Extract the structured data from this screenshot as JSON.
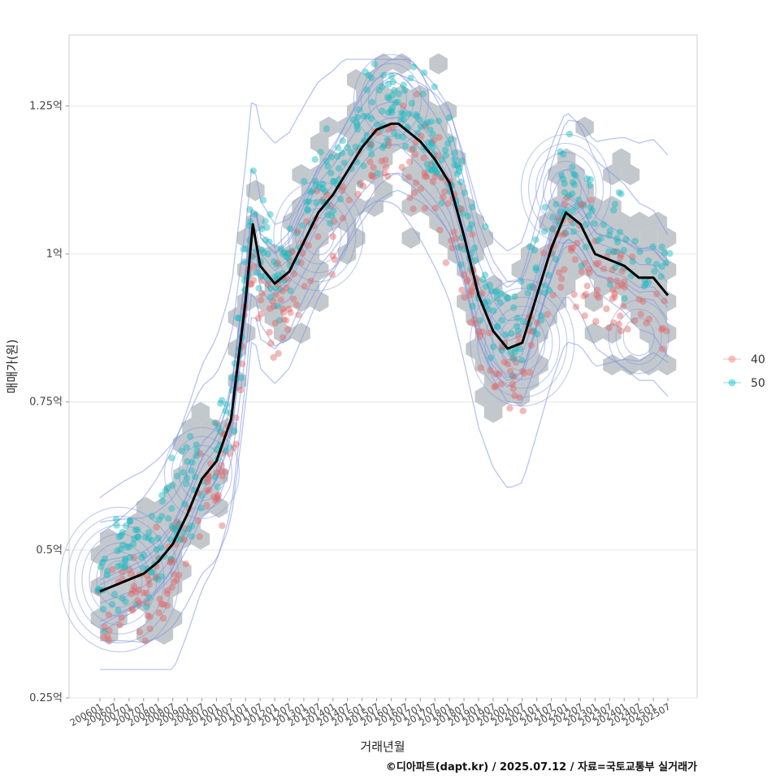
{
  "chart_data": {
    "type": "scatter",
    "xlabel": "거래년월",
    "ylabel": "매매가(원)",
    "caption": "©디아파트(dapt.kr) / 2025.07.12 / 자료=국토교통부 실거래가",
    "y_ticks": [
      {
        "value": 0.25,
        "label": "0.25억"
      },
      {
        "value": 0.5,
        "label": "0.5억"
      },
      {
        "value": 0.75,
        "label": "0.75억"
      },
      {
        "value": 1.0,
        "label": "1억"
      },
      {
        "value": 1.25,
        "label": "1.25억"
      }
    ],
    "ylim": [
      0.25,
      1.37
    ],
    "x_tick_labels": [
      "200601",
      "200607",
      "200701",
      "200707",
      "200801",
      "200807",
      "200901",
      "200907",
      "201001",
      "201007",
      "201101",
      "201107",
      "201201",
      "201207",
      "201301",
      "201307",
      "201401",
      "201407",
      "201501",
      "201507",
      "201601",
      "201607",
      "201701",
      "201707",
      "201801",
      "201807",
      "201901",
      "201907",
      "202001",
      "202007",
      "202101",
      "202107",
      "202201",
      "202207",
      "202301",
      "202307",
      "202401",
      "202407",
      "202501",
      "202507"
    ],
    "legend": {
      "position": "right",
      "entries": [
        {
          "name": "40",
          "color": "#F8766D"
        },
        {
          "name": "50",
          "color": "#00BFC4"
        }
      ]
    },
    "colors": {
      "hex": "#b8bec4",
      "contour": "#7b93e0",
      "trend": "#000000",
      "series_40": "#e06666",
      "series_50": "#13b9be"
    },
    "trend_line": {
      "x": [
        "200601",
        "200607",
        "200701",
        "200707",
        "200801",
        "200807",
        "200901",
        "200907",
        "201001",
        "201007",
        "201101",
        "201104",
        "201107",
        "201201",
        "201207",
        "201301",
        "201307",
        "201401",
        "201407",
        "201501",
        "201507",
        "201601",
        "201604",
        "201607",
        "201701",
        "201707",
        "201801",
        "201807",
        "201901",
        "201907",
        "202001",
        "202007",
        "202101",
        "202107",
        "202201",
        "202207",
        "202301",
        "202307",
        "202401",
        "202407",
        "202501",
        "202507"
      ],
      "y": [
        0.43,
        0.44,
        0.45,
        0.46,
        0.48,
        0.51,
        0.56,
        0.62,
        0.65,
        0.72,
        0.92,
        1.05,
        0.98,
        0.95,
        0.97,
        1.02,
        1.07,
        1.1,
        1.14,
        1.18,
        1.21,
        1.22,
        1.22,
        1.21,
        1.19,
        1.16,
        1.12,
        1.03,
        0.93,
        0.87,
        0.84,
        0.85,
        0.93,
        1.01,
        1.07,
        1.05,
        1.0,
        0.99,
        0.98,
        0.96,
        0.96,
        0.93
      ]
    },
    "density_peaks": [
      {
        "x": "200609",
        "y": 0.45,
        "n": 7
      },
      {
        "x": "200907",
        "y": 0.63,
        "n": 4
      },
      {
        "x": "201307",
        "y": 1.03,
        "n": 5
      },
      {
        "x": "201601",
        "y": 1.26,
        "n": 4
      },
      {
        "x": "202007",
        "y": 0.85,
        "n": 6
      },
      {
        "x": "202201",
        "y": 1.11,
        "n": 5
      },
      {
        "x": "202407",
        "y": 0.86,
        "n": 3
      }
    ]
  }
}
